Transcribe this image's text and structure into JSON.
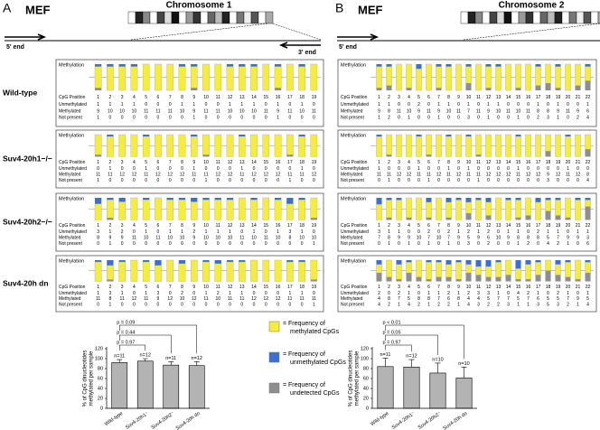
{
  "panels": [
    {
      "label": "A",
      "cell": "MEF",
      "chromosome": "Chromosome 1",
      "five_end": "5' end",
      "three_end": "3' end",
      "positions": [
        1,
        2,
        3,
        4,
        5,
        6,
        7,
        8,
        9,
        10,
        11,
        12,
        13,
        14,
        15,
        16,
        17,
        18,
        19
      ],
      "samples": [
        {
          "unmethylated": [
            1,
            1,
            1,
            1,
            0,
            0,
            0,
            1,
            1,
            0,
            0,
            1,
            1,
            1,
            0,
            1,
            0,
            1,
            0
          ],
          "methylated": [
            9,
            10,
            10,
            10,
            11,
            11,
            11,
            10,
            9,
            11,
            11,
            10,
            10,
            10,
            11,
            9,
            11,
            10,
            11
          ],
          "not_present": [
            1,
            0,
            0,
            0,
            0,
            0,
            0,
            0,
            1,
            0,
            0,
            0,
            0,
            0,
            0,
            1,
            0,
            0,
            0
          ]
        },
        {
          "unmethylated": [
            0,
            1,
            0,
            0,
            1,
            0,
            0,
            0,
            1,
            0,
            0,
            0,
            1,
            0,
            0,
            0,
            0,
            1,
            0
          ],
          "methylated": [
            11,
            11,
            12,
            12,
            11,
            12,
            12,
            12,
            11,
            11,
            12,
            12,
            11,
            12,
            12,
            12,
            11,
            11,
            12
          ],
          "not_present": [
            1,
            0,
            0,
            0,
            0,
            0,
            0,
            0,
            0,
            1,
            0,
            0,
            0,
            0,
            0,
            0,
            1,
            0,
            0
          ]
        },
        {
          "unmethylated": [
            3,
            1,
            2,
            0,
            1,
            0,
            1,
            1,
            2,
            1,
            1,
            1,
            0,
            1,
            0,
            1,
            3,
            1,
            0
          ],
          "methylated": [
            8,
            9,
            9,
            11,
            10,
            11,
            10,
            10,
            9,
            10,
            10,
            10,
            11,
            10,
            11,
            10,
            8,
            10,
            10
          ],
          "not_present": [
            0,
            1,
            0,
            0,
            0,
            0,
            0,
            0,
            0,
            0,
            0,
            0,
            0,
            0,
            0,
            0,
            0,
            0,
            1
          ]
        },
        {
          "unmethylated": [
            1,
            3,
            1,
            0,
            1,
            3,
            0,
            2,
            0,
            1,
            2,
            1,
            1,
            0,
            0,
            0,
            1,
            1,
            0
          ],
          "methylated": [
            11,
            8,
            11,
            12,
            11,
            9,
            12,
            10,
            12,
            11,
            10,
            11,
            11,
            12,
            12,
            12,
            11,
            11,
            11
          ],
          "not_present": [
            0,
            1,
            0,
            0,
            0,
            0,
            0,
            0,
            0,
            0,
            0,
            0,
            0,
            0,
            0,
            0,
            0,
            0,
            1
          ]
        }
      ]
    },
    {
      "label": "B",
      "cell": "MEF",
      "chromosome": "Chromosome 2",
      "five_end": "5' end",
      "three_end": "3' end",
      "positions": [
        1,
        2,
        3,
        4,
        5,
        6,
        7,
        8,
        9,
        10,
        11,
        12,
        13,
        14,
        15,
        16,
        17,
        18,
        19,
        20,
        21,
        22
      ],
      "samples": [
        {
          "unmethylated": [
            1,
            1,
            0,
            0,
            2,
            0,
            1,
            1,
            0,
            1,
            0,
            1,
            1,
            0,
            0,
            0,
            1,
            0,
            1,
            0,
            0,
            1
          ],
          "methylated": [
            9,
            8,
            11,
            10,
            9,
            11,
            9,
            10,
            11,
            7,
            11,
            9,
            10,
            11,
            10,
            11,
            8,
            8,
            9,
            11,
            9,
            6
          ],
          "not_present": [
            1,
            2,
            0,
            1,
            0,
            0,
            1,
            0,
            0,
            3,
            0,
            1,
            0,
            0,
            1,
            0,
            2,
            3,
            1,
            0,
            2,
            4
          ]
        },
        {
          "unmethylated": [
            1,
            0,
            0,
            0,
            1,
            0,
            0,
            1,
            0,
            1,
            0,
            0,
            0,
            0,
            1,
            0,
            0,
            0,
            0,
            1,
            0,
            0
          ],
          "methylated": [
            11,
            11,
            12,
            12,
            11,
            11,
            12,
            11,
            12,
            11,
            11,
            12,
            12,
            12,
            11,
            12,
            12,
            9,
            12,
            11,
            12,
            8
          ],
          "not_present": [
            0,
            1,
            0,
            0,
            0,
            1,
            0,
            0,
            0,
            0,
            1,
            0,
            0,
            0,
            0,
            0,
            0,
            3,
            0,
            0,
            0,
            4
          ]
        },
        {
          "unmethylated": [
            3,
            1,
            1,
            0,
            0,
            2,
            0,
            2,
            1,
            2,
            1,
            2,
            0,
            1,
            1,
            0,
            2,
            1,
            1,
            0,
            1,
            1
          ],
          "methylated": [
            7,
            8,
            9,
            9,
            10,
            7,
            10,
            7,
            9,
            5,
            9,
            6,
            10,
            9,
            8,
            8,
            8,
            5,
            7,
            9,
            9,
            3
          ],
          "not_present": [
            0,
            1,
            0,
            1,
            0,
            1,
            0,
            1,
            0,
            3,
            0,
            2,
            0,
            0,
            1,
            2,
            0,
            4,
            2,
            1,
            0,
            6
          ]
        },
        {
          "unmethylated": [
            2,
            0,
            2,
            1,
            0,
            1,
            1,
            2,
            1,
            2,
            3,
            3,
            1,
            0,
            4,
            2,
            1,
            0,
            2,
            1,
            0,
            1
          ],
          "methylated": [
            4,
            8,
            7,
            5,
            8,
            8,
            7,
            6,
            8,
            4,
            4,
            5,
            7,
            7,
            5,
            7,
            6,
            5,
            5,
            7,
            9,
            5
          ],
          "not_present": [
            4,
            2,
            1,
            4,
            2,
            1,
            2,
            2,
            1,
            4,
            3,
            2,
            2,
            3,
            1,
            1,
            3,
            5,
            3,
            2,
            1,
            4
          ]
        }
      ]
    }
  ],
  "sample_names": [
    "Wild-type",
    "Suv4-20h1−/−",
    "Suv4-20h2−/−",
    "Suv4-20h dn"
  ],
  "row_labels": {
    "methylation": "Methylation",
    "cpg": "CpG Position",
    "unmethylated": "Unmethylated",
    "methylated": "Methylated",
    "not_present": "Not present"
  },
  "colors": {
    "methylated": "#f5ec3b",
    "unmethylated": "#3b6fd6",
    "not_present": "#8e8e8e"
  },
  "legend": [
    {
      "lines": [
        "= Frequency of",
        "methylated CpGs"
      ],
      "color": "#f5ec3b"
    },
    {
      "lines": [
        "= Frequency of",
        "unmethylated CpGs"
      ],
      "color": "#3b6fd6"
    },
    {
      "lines": [
        "= Frequency of",
        "undetected CpGs"
      ],
      "color": "#8e8e8e"
    }
  ],
  "chart_data": [
    {
      "type": "bar",
      "categories": [
        "Wild-type",
        "Suv4-20h1⁻",
        "Suv4-20h2⁻",
        "Suv4-20h dn"
      ],
      "values": [
        92,
        95,
        87,
        86
      ],
      "errors": [
        6,
        5,
        7,
        8
      ],
      "n_labels": [
        "n=11",
        "n=12",
        "n=11",
        "n=12"
      ],
      "p_labels": [
        "p = 0.09",
        "p = 0.44",
        "p = 0.97"
      ],
      "ylabel_lines": [
        "% of CpG dinucleotides",
        "methylated per sample"
      ],
      "color": "#b3b3b3",
      "ylim": [
        0,
        120
      ],
      "yticks": [
        0,
        20,
        40,
        60,
        80,
        100,
        120
      ]
    },
    {
      "type": "bar",
      "categories": [
        "Wild-type",
        "Suv4-20h1⁻",
        "Suv4-20h2⁻",
        "Suv4-20h dn"
      ],
      "values": [
        84,
        83,
        71,
        61
      ],
      "errors": [
        17,
        15,
        20,
        22
      ],
      "n_labels": [
        "n=11",
        "n=12",
        "n=10",
        "n=10"
      ],
      "p_labels": [
        "p < 0.01",
        "p = 0.05",
        "p = 0.97"
      ],
      "ylabel_lines": [
        "% of CpG dinucleotides",
        "methylated per sample"
      ],
      "color": "#b3b3b3",
      "ylim": [
        0,
        120
      ],
      "yticks": [
        0,
        20,
        40,
        60,
        80,
        100,
        120
      ]
    }
  ]
}
